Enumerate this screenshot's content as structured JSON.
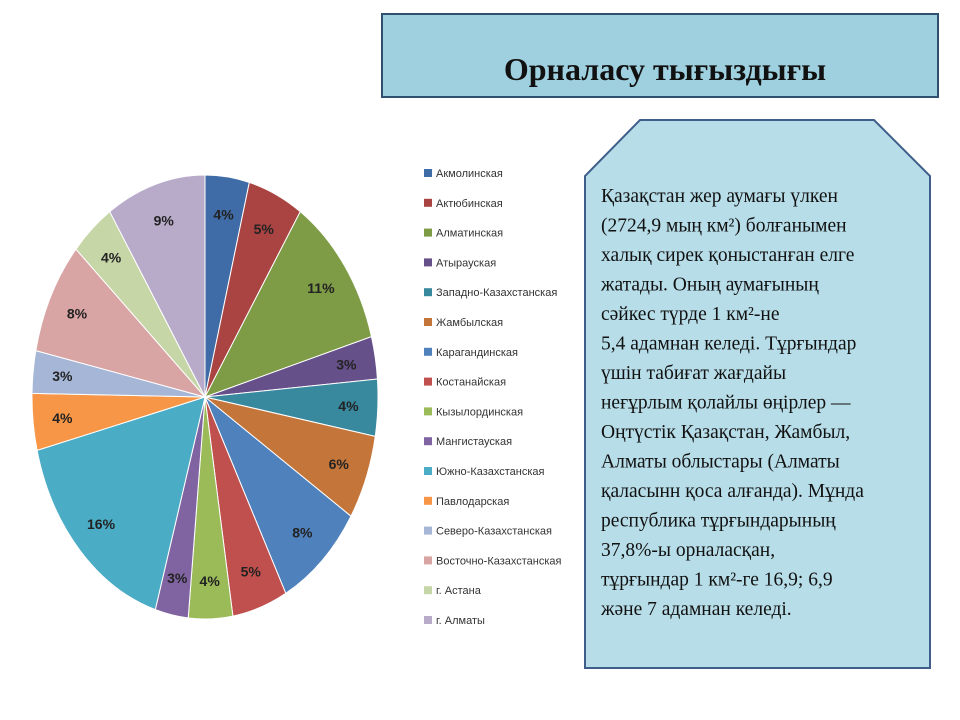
{
  "slide_title": "Орналасу тығыздығы",
  "text_box": {
    "lines": [
      "Қазақстан жер аумағы үлкен",
      "(2724,9 мың км²) болғанымен",
      "халық сирек қоныстанған елге",
      "жатады. Оның аумағының",
      "сәйкес түрде 1 км²-не",
      "5,4 адамнан келеді. Тұрғындар",
      "үшін табиғат жағдайы",
      "неғұрлым қолайлы өңірлер —",
      "Оңтүстік Қазақстан, Жамбыл,",
      "Алматы облыстары (Алматы",
      "қаласынн қоса алғанда). Мұнда",
      "республика тұрғындарының",
      "37,8%-ы орналасқан,",
      "тұрғындар 1 км²-ге 16,9; 6,9",
      "және 7 адамнан келеді."
    ]
  },
  "chart_data": {
    "type": "pie",
    "categories": [
      "Акмолинская",
      "Актюбинская",
      "Алматинская",
      "Атырауская",
      "Западно-Казахстанская",
      "Жамбылская",
      "Карагандинская",
      "Костанайская",
      "Кызылординская",
      "Мангистауская",
      "Южно-Казахстанская",
      "Павлодарская",
      "Северо-Казахстанская",
      "Восточно-Казахстанская",
      "г. Астана",
      "г. Алматы"
    ],
    "values": [
      4,
      5,
      11,
      3,
      4,
      6,
      8,
      5,
      4,
      3,
      16,
      4,
      3,
      8,
      4,
      9
    ],
    "value_labels": [
      "4%",
      "5%",
      "11%",
      "3%",
      "4%",
      "6%",
      "8%",
      "5%",
      "4%",
      "3%",
      "16%",
      "4%",
      "3%",
      "8%",
      "4%",
      "9%"
    ],
    "colors": [
      "#3f6ca7",
      "#a94442",
      "#7e9b46",
      "#66508a",
      "#38889e",
      "#c4753a",
      "#4f81bd",
      "#c0504d",
      "#9bbb59",
      "#8064a2",
      "#4bacc6",
      "#f79646",
      "#a5b6d6",
      "#d9a5a4",
      "#c6d6a7",
      "#b8abca"
    ],
    "legend": "right"
  }
}
